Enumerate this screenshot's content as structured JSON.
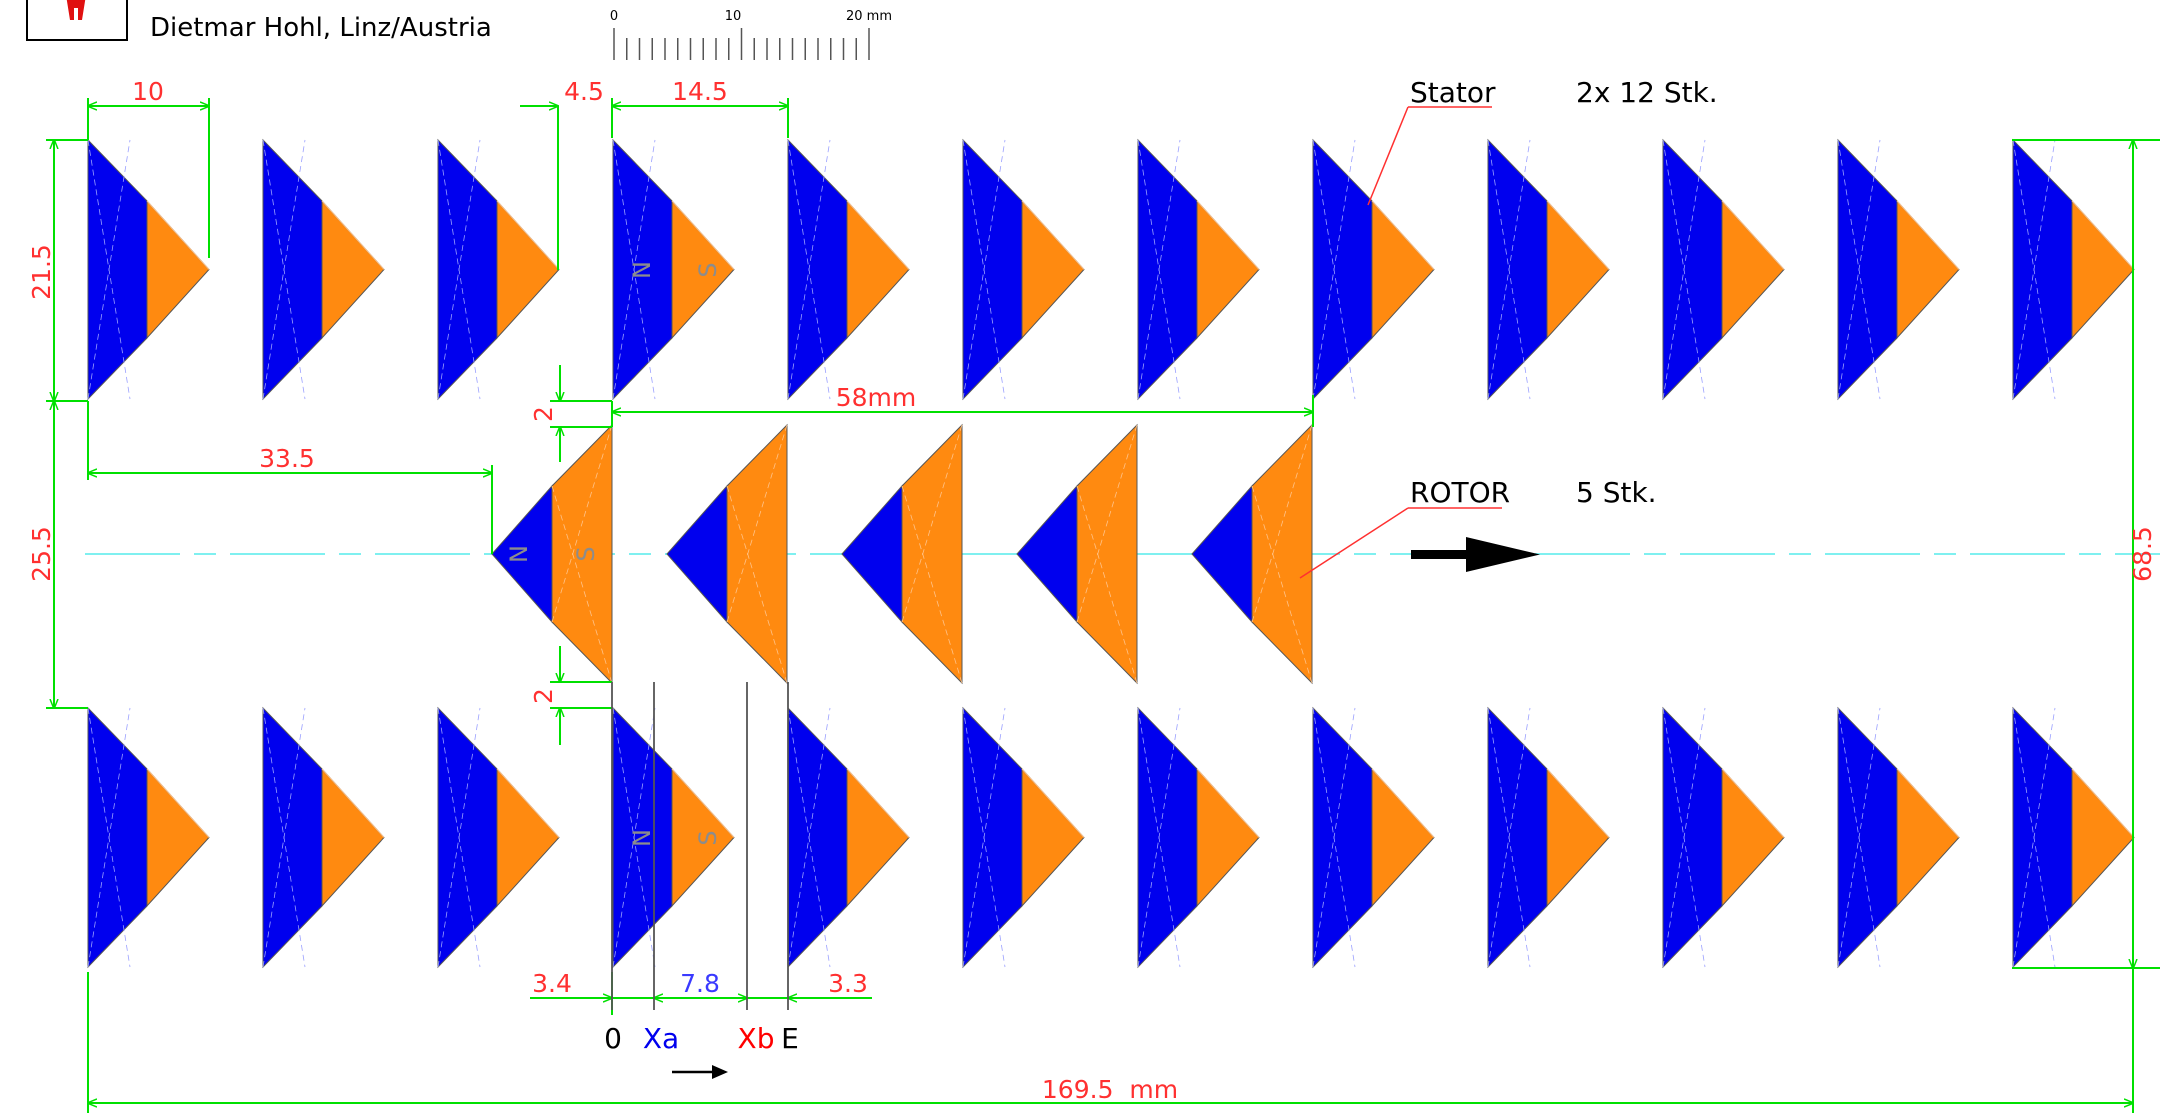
{
  "header": {
    "author": "Dietmar Hohl, Linz/Austria"
  },
  "scale_bar": {
    "ticks": [
      "0",
      "10",
      "20 mm"
    ]
  },
  "colors": {
    "blue": "#0000ee",
    "orange": "#ff8a10",
    "dimension": "#00e000",
    "dimension_text": "#ff3030",
    "centerline": "#7ff0f0",
    "leader": "#ff3030",
    "pole_letter": "#8c8c8c",
    "xa": "#0000ee",
    "xb": "#ff0000"
  },
  "poles": {
    "north": "N",
    "south": "S"
  },
  "stator": {
    "label": "Stator",
    "count": "2x 12 Stk.",
    "magnets_per_row": 12
  },
  "rotor": {
    "label": "ROTOR",
    "count": "5 Stk.",
    "magnets": 5
  },
  "dimensions": {
    "d10": "10",
    "d4_5": "4.5",
    "d14_5": "14.5",
    "d21_5": "21.5",
    "d2_top": "2",
    "d58": "58mm",
    "d33_5": "33.5",
    "d25_5": "25.5",
    "d68_5": "68.5",
    "d2_bottom": "2",
    "d3_4": "3.4",
    "d7_8": "7.8",
    "d3_3": "3.3",
    "total": "169.5  mm"
  },
  "positions": {
    "zero": "0",
    "xa": "Xa",
    "xb": "Xb",
    "end": "E"
  }
}
